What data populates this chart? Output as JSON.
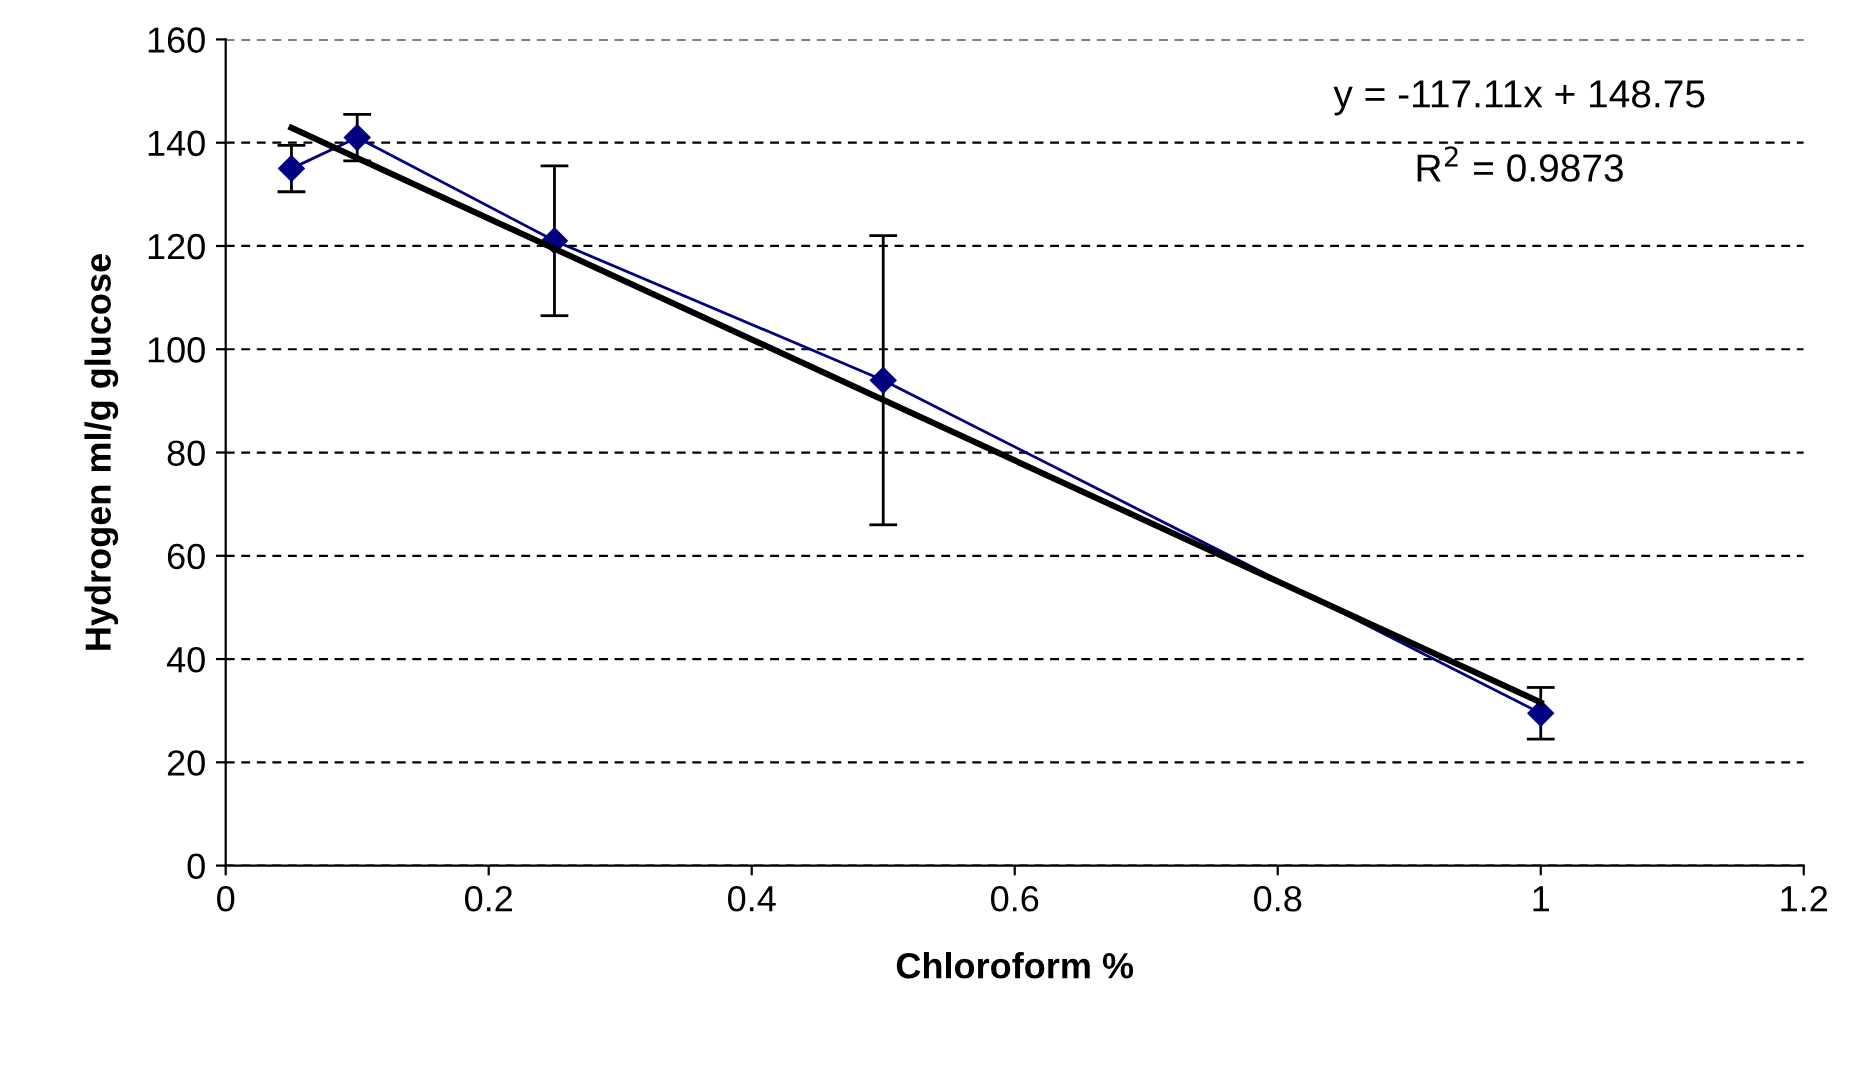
{
  "chart_data": {
    "type": "line",
    "xlabel": "Chloroform %",
    "ylabel": "Hydrogen ml/g glucose",
    "xlim": [
      0,
      1.2
    ],
    "xticks": [
      0,
      0.2,
      0.4,
      0.6,
      0.8,
      1,
      1.2
    ],
    "ylim": [
      0,
      160
    ],
    "yticks": [
      0,
      20,
      40,
      60,
      80,
      100,
      120,
      140,
      160
    ],
    "grid": "y",
    "legend": false,
    "series": [
      {
        "color": "#000080",
        "marker": "diamond",
        "x": [
          0.05,
          0.1,
          0.25,
          0.5,
          1
        ],
        "values": [
          135,
          141,
          121,
          94,
          29.5
        ],
        "errors": [
          4.5,
          4.5,
          14.5,
          28,
          5
        ]
      },
      {
        "color": "#000000",
        "marker": "none",
        "x": [
          0.05,
          1
        ],
        "values": [
          142.9,
          31.6
        ]
      }
    ],
    "annotations": [
      "y = -117.11x + 148.75",
      "R$^{2}$ = 0.9873"
    ]
  }
}
